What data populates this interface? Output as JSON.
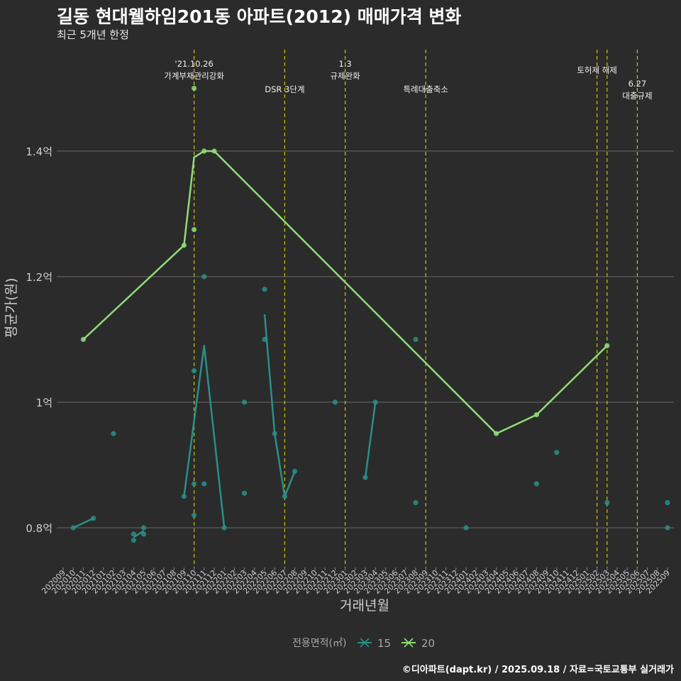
{
  "header": {
    "title": "길동 현대웰하임201동 아파트(2012) 매매가격 변화",
    "subtitle": "최근 5개년 한정"
  },
  "caption": "©디아파트(dapt.kr) / 2025.09.18 / 자료=국토교통부 실거래가",
  "legend": {
    "title": "전용면적(㎡)",
    "items": [
      {
        "label": "15",
        "color": "#2a8f88"
      },
      {
        "label": "20",
        "color": "#8fdc78"
      }
    ]
  },
  "chart_data": {
    "type": "line",
    "title": "길동 현대웰하임201동 아파트(2012) 매매가격 변화",
    "xlabel": "거래년월",
    "ylabel": "평균가(원)",
    "ylim": [
      0.75,
      1.56
    ],
    "ytick_values": [
      0.8,
      1.0,
      1.2,
      1.4
    ],
    "ytick_labels": [
      "0.8억",
      "1억",
      "1.2억",
      "1.4억"
    ],
    "categories": [
      "202009",
      "202010",
      "202011",
      "202012",
      "202101",
      "202102",
      "202103",
      "202104",
      "202105",
      "202106",
      "202107",
      "202108",
      "202109",
      "202110",
      "202111",
      "202112",
      "202201",
      "202202",
      "202203",
      "202204",
      "202205",
      "202206",
      "202207",
      "202208",
      "202209",
      "202210",
      "202211",
      "202212",
      "202301",
      "202302",
      "202303",
      "202304",
      "202305",
      "202306",
      "202307",
      "202308",
      "202309",
      "202310",
      "202311",
      "202312",
      "202401",
      "202402",
      "202403",
      "202404",
      "202405",
      "202406",
      "202407",
      "202408",
      "202409",
      "202410",
      "202411",
      "202412",
      "202501",
      "202502",
      "202503",
      "202504",
      "202505",
      "202506",
      "202507",
      "202508",
      "202509"
    ],
    "series": [
      {
        "name": "15",
        "color": "#2a8f88",
        "line": [
          {
            "x": "202010",
            "y": 0.8
          },
          {
            "x": "202012",
            "y": 0.815
          },
          {
            "x": "202104",
            "y": 0.785
          },
          {
            "x": "202105",
            "y": 0.795
          },
          {
            "x": "202109",
            "y": 0.85
          },
          {
            "x": "202111",
            "y": 1.09
          },
          {
            "x": "202201",
            "y": 0.8
          },
          {
            "x": "202205",
            "y": 1.14
          },
          {
            "x": "202206",
            "y": 0.95
          },
          {
            "x": "202207",
            "y": 0.85
          },
          {
            "x": "202208",
            "y": 0.89
          },
          {
            "x": "202303",
            "y": 0.88
          },
          {
            "x": "202304",
            "y": 1.0
          }
        ],
        "points": [
          {
            "x": "202010",
            "y": 0.8
          },
          {
            "x": "202012",
            "y": 0.815
          },
          {
            "x": "202102",
            "y": 0.95
          },
          {
            "x": "202104",
            "y": 0.79
          },
          {
            "x": "202104",
            "y": 0.78
          },
          {
            "x": "202105",
            "y": 0.8
          },
          {
            "x": "202105",
            "y": 0.79
          },
          {
            "x": "202109",
            "y": 0.85
          },
          {
            "x": "202110",
            "y": 1.05
          },
          {
            "x": "202110",
            "y": 0.87
          },
          {
            "x": "202110",
            "y": 0.82
          },
          {
            "x": "202111",
            "y": 1.2
          },
          {
            "x": "202111",
            "y": 0.87
          },
          {
            "x": "202201",
            "y": 0.8
          },
          {
            "x": "202203",
            "y": 1.0
          },
          {
            "x": "202203",
            "y": 0.855
          },
          {
            "x": "202205",
            "y": 1.18
          },
          {
            "x": "202205",
            "y": 1.1
          },
          {
            "x": "202206",
            "y": 0.95
          },
          {
            "x": "202207",
            "y": 0.85
          },
          {
            "x": "202208",
            "y": 0.89
          },
          {
            "x": "202212",
            "y": 1.0
          },
          {
            "x": "202303",
            "y": 0.88
          },
          {
            "x": "202304",
            "y": 1.0
          },
          {
            "x": "202308",
            "y": 1.1
          },
          {
            "x": "202308",
            "y": 0.84
          },
          {
            "x": "202401",
            "y": 0.8
          },
          {
            "x": "202408",
            "y": 0.87
          },
          {
            "x": "202410",
            "y": 0.92
          },
          {
            "x": "202503",
            "y": 0.84
          },
          {
            "x": "202509",
            "y": 0.84
          },
          {
            "x": "202509",
            "y": 0.8
          }
        ]
      },
      {
        "name": "20",
        "color": "#8fdc78",
        "line": [
          {
            "x": "202011",
            "y": 1.1
          },
          {
            "x": "202109",
            "y": 1.25
          },
          {
            "x": "202110",
            "y": 1.39
          },
          {
            "x": "202111",
            "y": 1.4
          },
          {
            "x": "202112",
            "y": 1.4
          },
          {
            "x": "202404",
            "y": 0.95
          },
          {
            "x": "202408",
            "y": 0.98
          },
          {
            "x": "202503",
            "y": 1.09
          }
        ],
        "points": [
          {
            "x": "202011",
            "y": 1.1
          },
          {
            "x": "202109",
            "y": 1.25
          },
          {
            "x": "202110",
            "y": 1.5
          },
          {
            "x": "202110",
            "y": 1.275
          },
          {
            "x": "202111",
            "y": 1.4
          },
          {
            "x": "202112",
            "y": 1.4
          },
          {
            "x": "202404",
            "y": 0.95
          },
          {
            "x": "202408",
            "y": 0.98
          },
          {
            "x": "202503",
            "y": 1.09
          }
        ]
      }
    ],
    "events": [
      {
        "x": "202110",
        "lines": [
          "'21.10.26",
          "가계부채관리강화"
        ],
        "level": "high"
      },
      {
        "x": "202207",
        "lines": [
          "DSR 3단계"
        ],
        "level": "low"
      },
      {
        "x": "202301",
        "lines": [
          "1.3",
          "규제완화"
        ],
        "level": "high"
      },
      {
        "x": "202309",
        "lines": [
          "특례대출축소"
        ],
        "level": "low"
      },
      {
        "x": "202502",
        "lines": [
          "토허제 해제"
        ],
        "level": "mid"
      },
      {
        "x": "202503",
        "lines": [],
        "level": "none"
      },
      {
        "x": "202506",
        "lines": [
          "6.27",
          "대출규제"
        ],
        "level": "lower"
      }
    ]
  }
}
